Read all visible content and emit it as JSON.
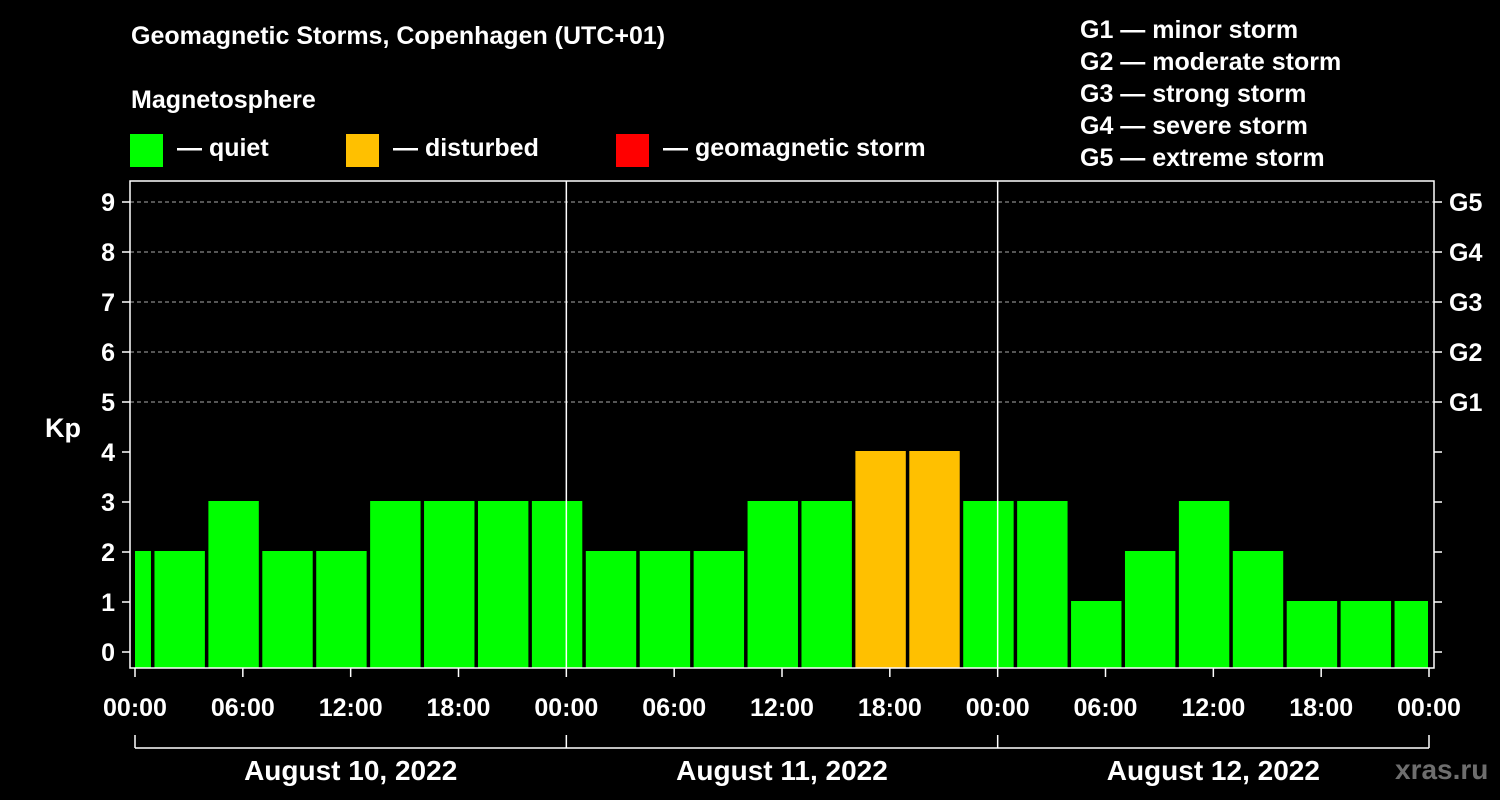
{
  "chart_data": {
    "type": "bar",
    "title": "Geomagnetic Storms, Copenhagen (UTC+01)",
    "ylabel": "Kp",
    "ylim": [
      0,
      9
    ],
    "yticks": [
      "0",
      "1",
      "2",
      "3",
      "4",
      "5",
      "6",
      "7",
      "8",
      "9"
    ],
    "right_ticks": [
      {
        "kp": 5,
        "label": "G1"
      },
      {
        "kp": 6,
        "label": "G2"
      },
      {
        "kp": 7,
        "label": "G3"
      },
      {
        "kp": 8,
        "label": "G4"
      },
      {
        "kp": 9,
        "label": "G5"
      }
    ],
    "x_time_labels": [
      "00:00",
      "06:00",
      "12:00",
      "18:00",
      "00:00",
      "06:00",
      "12:00",
      "18:00",
      "00:00",
      "06:00",
      "12:00",
      "18:00",
      "00:00"
    ],
    "days": [
      "August 10, 2022",
      "August 11, 2022",
      "August 12, 2022"
    ],
    "bar_interval_hours": 3,
    "first_bar_start_hour": -2,
    "values": [
      2,
      2,
      3,
      2,
      2,
      3,
      3,
      3,
      3,
      2,
      2,
      2,
      3,
      3,
      4,
      4,
      3,
      3,
      1,
      2,
      3,
      2,
      1,
      1,
      1
    ],
    "colors": {
      "quiet": "#00ff00",
      "disturbed": "#ffc000",
      "storm": "#ff0000"
    },
    "grid": "dashed-horizontal"
  },
  "legend": {
    "heading": "Magnetosphere",
    "items": [
      {
        "label": "— quiet",
        "color": "#00ff00"
      },
      {
        "label": "— disturbed",
        "color": "#ffc000"
      },
      {
        "label": "— geomagnetic storm",
        "color": "#ff0000"
      }
    ]
  },
  "storm_scale": [
    "G1 — minor storm",
    "G2 — moderate storm",
    "G3 — strong storm",
    "G4 — severe storm",
    "G5 — extreme storm"
  ],
  "watermark": "xras.ru"
}
